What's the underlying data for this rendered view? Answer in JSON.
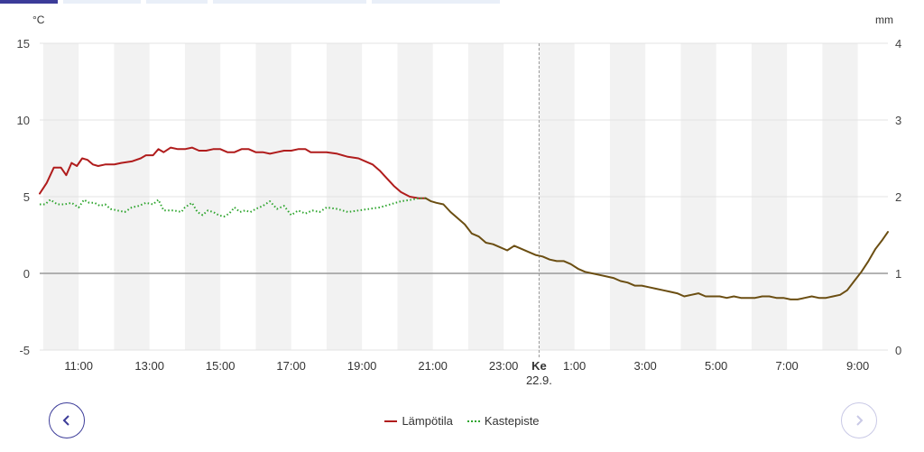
{
  "tabs": [
    {
      "label": "",
      "active": true
    },
    {
      "label": "",
      "active": false
    },
    {
      "label": "",
      "active": false
    },
    {
      "label": "",
      "active": false
    },
    {
      "label": "",
      "active": false
    }
  ],
  "nav": {
    "prev_icon": "chevron-left-icon",
    "next_icon": "chevron-right-icon"
  },
  "chart_data": {
    "type": "line",
    "title": "",
    "left_unit": "°C",
    "right_unit": "mm",
    "x_range_hours": [
      9.9,
      33.85
    ],
    "ylim_left": [
      -5,
      15
    ],
    "yticks_left": [
      "15",
      "10",
      "5",
      "0",
      "-5"
    ],
    "ylim_right": [
      0,
      4
    ],
    "yticks_right": [
      "4",
      "3",
      "2",
      "1",
      "0"
    ],
    "x_ticks": [
      {
        "hour": 11,
        "label": "11:00"
      },
      {
        "hour": 13,
        "label": "13:00"
      },
      {
        "hour": 15,
        "label": "15:00"
      },
      {
        "hour": 17,
        "label": "17:00"
      },
      {
        "hour": 19,
        "label": "19:00"
      },
      {
        "hour": 21,
        "label": "21:00"
      },
      {
        "hour": 23,
        "label": "23:00"
      },
      {
        "hour": 24,
        "label": "Ke",
        "sublabel": "22.9.",
        "bold": true
      },
      {
        "hour": 25,
        "label": "1:00"
      },
      {
        "hour": 27,
        "label": "3:00"
      },
      {
        "hour": 29,
        "label": "5:00"
      },
      {
        "hour": 31,
        "label": "7:00"
      },
      {
        "hour": 33,
        "label": "9:00"
      }
    ],
    "day_divider_hour": 24,
    "legend_position": "bottom",
    "series": [
      {
        "name": "Lämpötila",
        "color": "#b01c1c",
        "style": "solid",
        "points": [
          [
            9.9,
            5.2
          ],
          [
            10.1,
            5.9
          ],
          [
            10.3,
            6.9
          ],
          [
            10.5,
            6.9
          ],
          [
            10.65,
            6.4
          ],
          [
            10.8,
            7.2
          ],
          [
            10.95,
            7.0
          ],
          [
            11.1,
            7.5
          ],
          [
            11.25,
            7.4
          ],
          [
            11.4,
            7.1
          ],
          [
            11.55,
            7.0
          ],
          [
            11.75,
            7.1
          ],
          [
            12.0,
            7.1
          ],
          [
            12.2,
            7.2
          ],
          [
            12.5,
            7.3
          ],
          [
            12.75,
            7.5
          ],
          [
            12.9,
            7.7
          ],
          [
            13.1,
            7.7
          ],
          [
            13.25,
            8.1
          ],
          [
            13.4,
            7.9
          ],
          [
            13.6,
            8.2
          ],
          [
            13.8,
            8.1
          ],
          [
            14.0,
            8.1
          ],
          [
            14.2,
            8.2
          ],
          [
            14.4,
            8.0
          ],
          [
            14.6,
            8.0
          ],
          [
            14.8,
            8.1
          ],
          [
            15.0,
            8.1
          ],
          [
            15.2,
            7.9
          ],
          [
            15.4,
            7.9
          ],
          [
            15.6,
            8.1
          ],
          [
            15.8,
            8.1
          ],
          [
            16.0,
            7.9
          ],
          [
            16.2,
            7.9
          ],
          [
            16.4,
            7.8
          ],
          [
            16.6,
            7.9
          ],
          [
            16.8,
            8.0
          ],
          [
            17.0,
            8.0
          ],
          [
            17.2,
            8.1
          ],
          [
            17.4,
            8.1
          ],
          [
            17.55,
            7.9
          ],
          [
            17.8,
            7.9
          ],
          [
            18.0,
            7.9
          ],
          [
            18.3,
            7.8
          ],
          [
            18.6,
            7.6
          ],
          [
            18.9,
            7.5
          ],
          [
            19.1,
            7.3
          ],
          [
            19.3,
            7.1
          ],
          [
            19.5,
            6.7
          ],
          [
            19.7,
            6.2
          ],
          [
            19.9,
            5.7
          ],
          [
            20.1,
            5.3
          ],
          [
            20.35,
            5.0
          ],
          [
            20.6,
            4.9
          ],
          [
            20.8,
            4.9
          ]
        ]
      },
      {
        "name": "Kastepiste",
        "color": "#2ea52e",
        "style": "dotted",
        "points": [
          [
            9.9,
            4.5
          ],
          [
            10.05,
            4.5
          ],
          [
            10.2,
            4.8
          ],
          [
            10.4,
            4.5
          ],
          [
            10.6,
            4.5
          ],
          [
            10.8,
            4.6
          ],
          [
            11.0,
            4.3
          ],
          [
            11.15,
            4.8
          ],
          [
            11.3,
            4.6
          ],
          [
            11.45,
            4.6
          ],
          [
            11.6,
            4.4
          ],
          [
            11.75,
            4.5
          ],
          [
            11.9,
            4.2
          ],
          [
            12.1,
            4.1
          ],
          [
            12.3,
            4.0
          ],
          [
            12.5,
            4.3
          ],
          [
            12.7,
            4.4
          ],
          [
            12.9,
            4.6
          ],
          [
            13.1,
            4.5
          ],
          [
            13.25,
            4.8
          ],
          [
            13.4,
            4.1
          ],
          [
            13.55,
            4.1
          ],
          [
            13.7,
            4.1
          ],
          [
            13.9,
            4.0
          ],
          [
            14.0,
            4.3
          ],
          [
            14.2,
            4.6
          ],
          [
            14.35,
            4.0
          ],
          [
            14.5,
            3.8
          ],
          [
            14.65,
            4.1
          ],
          [
            14.8,
            4.0
          ],
          [
            14.95,
            3.8
          ],
          [
            15.1,
            3.7
          ],
          [
            15.25,
            3.9
          ],
          [
            15.4,
            4.3
          ],
          [
            15.55,
            4.0
          ],
          [
            15.7,
            4.1
          ],
          [
            15.85,
            4.0
          ],
          [
            16.0,
            4.2
          ],
          [
            16.2,
            4.4
          ],
          [
            16.4,
            4.7
          ],
          [
            16.6,
            4.2
          ],
          [
            16.8,
            4.4
          ],
          [
            17.0,
            3.8
          ],
          [
            17.2,
            4.1
          ],
          [
            17.4,
            3.9
          ],
          [
            17.6,
            4.1
          ],
          [
            17.8,
            4.0
          ],
          [
            18.0,
            4.3
          ],
          [
            18.3,
            4.2
          ],
          [
            18.6,
            4.0
          ],
          [
            18.9,
            4.1
          ],
          [
            19.2,
            4.2
          ],
          [
            19.5,
            4.3
          ],
          [
            19.8,
            4.5
          ],
          [
            20.1,
            4.7
          ],
          [
            20.4,
            4.8
          ],
          [
            20.6,
            4.9
          ],
          [
            20.8,
            4.9
          ]
        ]
      },
      {
        "name": "",
        "color": "#6b4e12",
        "style": "solid",
        "points": [
          [
            20.8,
            4.9
          ],
          [
            20.95,
            4.7
          ],
          [
            21.1,
            4.6
          ],
          [
            21.3,
            4.5
          ],
          [
            21.5,
            4.0
          ],
          [
            21.7,
            3.6
          ],
          [
            21.9,
            3.2
          ],
          [
            22.1,
            2.6
          ],
          [
            22.3,
            2.4
          ],
          [
            22.5,
            2.0
          ],
          [
            22.7,
            1.9
          ],
          [
            22.9,
            1.7
          ],
          [
            23.1,
            1.5
          ],
          [
            23.3,
            1.8
          ],
          [
            23.5,
            1.6
          ],
          [
            23.7,
            1.4
          ],
          [
            23.9,
            1.2
          ],
          [
            24.1,
            1.1
          ],
          [
            24.3,
            0.9
          ],
          [
            24.5,
            0.8
          ],
          [
            24.7,
            0.8
          ],
          [
            24.9,
            0.6
          ],
          [
            25.1,
            0.3
          ],
          [
            25.3,
            0.1
          ],
          [
            25.5,
            0.0
          ],
          [
            25.7,
            -0.1
          ],
          [
            25.9,
            -0.2
          ],
          [
            26.1,
            -0.3
          ],
          [
            26.3,
            -0.5
          ],
          [
            26.5,
            -0.6
          ],
          [
            26.7,
            -0.8
          ],
          [
            26.9,
            -0.8
          ],
          [
            27.1,
            -0.9
          ],
          [
            27.3,
            -1.0
          ],
          [
            27.5,
            -1.1
          ],
          [
            27.7,
            -1.2
          ],
          [
            27.9,
            -1.3
          ],
          [
            28.1,
            -1.5
          ],
          [
            28.3,
            -1.4
          ],
          [
            28.5,
            -1.3
          ],
          [
            28.7,
            -1.5
          ],
          [
            28.9,
            -1.5
          ],
          [
            29.1,
            -1.5
          ],
          [
            29.3,
            -1.6
          ],
          [
            29.5,
            -1.5
          ],
          [
            29.7,
            -1.6
          ],
          [
            29.9,
            -1.6
          ],
          [
            30.1,
            -1.6
          ],
          [
            30.3,
            -1.5
          ],
          [
            30.5,
            -1.5
          ],
          [
            30.7,
            -1.6
          ],
          [
            30.9,
            -1.6
          ],
          [
            31.1,
            -1.7
          ],
          [
            31.3,
            -1.7
          ],
          [
            31.5,
            -1.6
          ],
          [
            31.7,
            -1.5
          ],
          [
            31.9,
            -1.6
          ],
          [
            32.1,
            -1.6
          ],
          [
            32.3,
            -1.5
          ],
          [
            32.5,
            -1.4
          ],
          [
            32.7,
            -1.1
          ],
          [
            32.9,
            -0.5
          ],
          [
            33.1,
            0.1
          ],
          [
            33.3,
            0.8
          ],
          [
            33.5,
            1.6
          ],
          [
            33.7,
            2.2
          ],
          [
            33.85,
            2.7
          ]
        ]
      }
    ]
  }
}
